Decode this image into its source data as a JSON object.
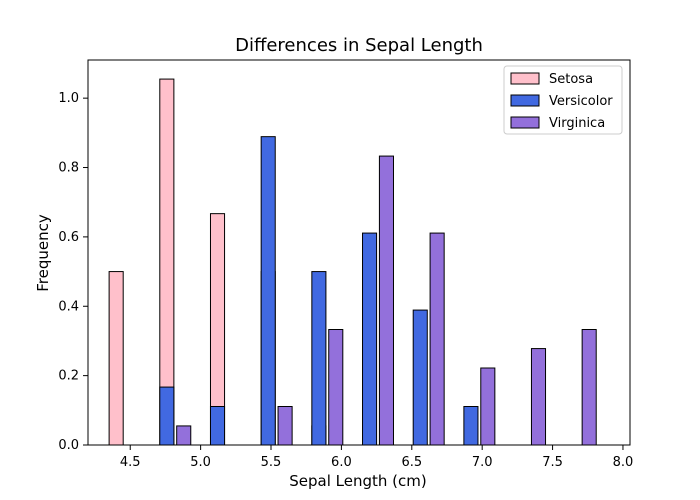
{
  "chart_data": {
    "type": "bar",
    "title": "Differences in Sepal Length",
    "xlabel": "Sepal Length (cm)",
    "ylabel": "Frequency",
    "xlim": [
      4.2,
      8.05
    ],
    "ylim": [
      0,
      1.11
    ],
    "xticks": [
      "4.5",
      "5.0",
      "5.5",
      "6.0",
      "6.5",
      "7.0",
      "7.5",
      "8.0"
    ],
    "yticks": [
      "0.0",
      "0.2",
      "0.4",
      "0.6",
      "0.8",
      "1.0"
    ],
    "grid": false,
    "legend_position": "top-right",
    "series": [
      {
        "name": "Setosa",
        "color": "#FFC0CB",
        "edgecolor": "#000000",
        "x": [
          4.4,
          4.76,
          5.12,
          5.48,
          5.84,
          6.2,
          6.56,
          6.92,
          7.28,
          7.64
        ],
        "values": [
          0.5,
          1.055,
          0.667,
          0.5,
          0.055,
          0,
          0,
          0,
          0,
          0
        ]
      },
      {
        "name": "Versicolor",
        "color": "#4169E1",
        "edgecolor": "#000000",
        "x": [
          4.76,
          5.12,
          5.48,
          5.84,
          6.2,
          6.56,
          6.92
        ],
        "values": [
          0.167,
          0.111,
          0.889,
          0.5,
          0.611,
          0.389,
          0.111
        ]
      },
      {
        "name": "Virginica",
        "color": "#9370DB",
        "edgecolor": "#000000",
        "x": [
          4.88,
          5.24,
          5.6,
          5.96,
          6.32,
          6.68,
          7.04,
          7.4,
          7.76
        ],
        "values": [
          0.055,
          0,
          0.111,
          0.333,
          0.833,
          0.611,
          0.222,
          0.278,
          0.333
        ]
      }
    ]
  }
}
